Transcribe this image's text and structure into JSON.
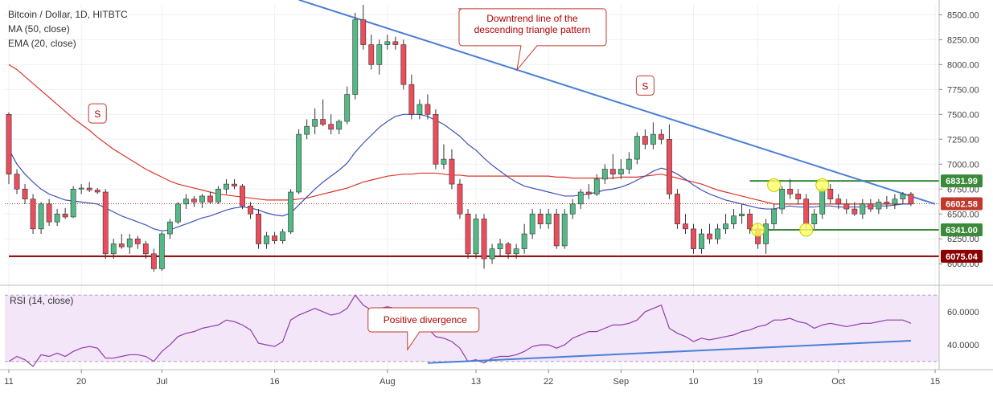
{
  "chart_data": {
    "type": "candlestick",
    "title": "Bitcoin / Dollar, 1D, HITBTC",
    "indicators": [
      "MA (50, close)",
      "EMA (20, close)"
    ],
    "rsi_label": "RSI (14, close)",
    "price_ticks": [
      "8500.00",
      "8250.00",
      "8000.00",
      "7750.00",
      "7500.00",
      "7250.00",
      "7000.00",
      "6750.00",
      "6500.00",
      "6250.00",
      "6000.00"
    ],
    "price_tick_values": [
      8500,
      8250,
      8000,
      7750,
      7500,
      7250,
      7000,
      6750,
      6500,
      6250,
      6000
    ],
    "rsi_ticks": [
      "60.0000",
      "40.0000"
    ],
    "rsi_tick_values": [
      60,
      40
    ],
    "x_ticks": [
      "11",
      "20",
      "Jul",
      "16",
      "Aug",
      "13",
      "22",
      "Sep",
      "10",
      "19",
      "Oct",
      "15"
    ],
    "x_tick_index": [
      0,
      9,
      19,
      33,
      47,
      58,
      67,
      76,
      85,
      93,
      103,
      115
    ],
    "price_range": [
      5800,
      8600
    ],
    "rsi_range": [
      25,
      75
    ],
    "rsi_bands": [
      70,
      30
    ],
    "price_tags": [
      {
        "label": "6831.99",
        "value": 6831.99,
        "color": "#3a8a3a"
      },
      {
        "label": "6602.58",
        "value": 6602.58,
        "color": "#c0392b"
      },
      {
        "label": "6341.00",
        "value": 6341.0,
        "color": "#3a8a3a"
      },
      {
        "label": "6075.04",
        "value": 6075.04,
        "color": "#8b0000"
      }
    ],
    "horizontal_lines": [
      {
        "value": 6831.99,
        "color": "#3a8a3a",
        "from_index": 92
      },
      {
        "value": 6341.0,
        "color": "#3a8a3a",
        "from_index": 92
      },
      {
        "value": 6075.04,
        "color": "#8b0000",
        "from_index": 0
      }
    ],
    "trendline": {
      "from": [
        36,
        8650
      ],
      "to": [
        115,
        6600
      ],
      "color": "#4a7fd6"
    },
    "rsi_trendline": {
      "from": [
        52,
        29
      ],
      "to": [
        112,
        42.5
      ],
      "color": "#4a7fd6"
    },
    "candles": [
      [
        7500,
        7520,
        6800,
        6900
      ],
      [
        6900,
        6950,
        6700,
        6750
      ],
      [
        6750,
        6800,
        6600,
        6650
      ],
      [
        6650,
        6700,
        6300,
        6350
      ],
      [
        6350,
        6620,
        6300,
        6600
      ],
      [
        6600,
        6650,
        6380,
        6420
      ],
      [
        6420,
        6550,
        6380,
        6500
      ],
      [
        6500,
        6560,
        6450,
        6470
      ],
      [
        6470,
        6780,
        6460,
        6750
      ],
      [
        6750,
        6800,
        6700,
        6760
      ],
      [
        6760,
        6820,
        6720,
        6740
      ],
      [
        6740,
        6760,
        6700,
        6720
      ],
      [
        6720,
        6750,
        6050,
        6100
      ],
      [
        6100,
        6250,
        6050,
        6200
      ],
      [
        6200,
        6300,
        6150,
        6170
      ],
      [
        6170,
        6300,
        6100,
        6250
      ],
      [
        6250,
        6280,
        6150,
        6200
      ],
      [
        6200,
        6230,
        6050,
        6100
      ],
      [
        6100,
        6150,
        5920,
        5950
      ],
      [
        5950,
        6320,
        5930,
        6300
      ],
      [
        6300,
        6450,
        6250,
        6420
      ],
      [
        6420,
        6620,
        6400,
        6600
      ],
      [
        6600,
        6700,
        6550,
        6650
      ],
      [
        6650,
        6680,
        6570,
        6620
      ],
      [
        6620,
        6700,
        6560,
        6680
      ],
      [
        6680,
        6720,
        6600,
        6620
      ],
      [
        6620,
        6780,
        6600,
        6750
      ],
      [
        6750,
        6850,
        6700,
        6800
      ],
      [
        6800,
        6850,
        6750,
        6780
      ],
      [
        6780,
        6800,
        6550,
        6580
      ],
      [
        6580,
        6620,
        6450,
        6500
      ],
      [
        6500,
        6550,
        6150,
        6200
      ],
      [
        6200,
        6320,
        6150,
        6280
      ],
      [
        6280,
        6320,
        6200,
        6230
      ],
      [
        6230,
        6350,
        6200,
        6320
      ],
      [
        6320,
        6750,
        6300,
        6720
      ],
      [
        6720,
        7350,
        6700,
        7300
      ],
      [
        7300,
        7450,
        7250,
        7380
      ],
      [
        7380,
        7560,
        7300,
        7450
      ],
      [
        7450,
        7650,
        7380,
        7400
      ],
      [
        7400,
        7500,
        7300,
        7350
      ],
      [
        7350,
        7450,
        7300,
        7430
      ],
      [
        7430,
        7780,
        7400,
        7700
      ],
      [
        7700,
        8520,
        7650,
        8450
      ],
      [
        8450,
        8600,
        8150,
        8200
      ],
      [
        8200,
        8300,
        7950,
        8000
      ],
      [
        8000,
        8250,
        7900,
        8200
      ],
      [
        8200,
        8300,
        8150,
        8230
      ],
      [
        8230,
        8280,
        8150,
        8200
      ],
      [
        8200,
        8250,
        7750,
        7800
      ],
      [
        7800,
        7900,
        7450,
        7500
      ],
      [
        7500,
        7650,
        7450,
        7600
      ],
      [
        7600,
        7700,
        7450,
        7500
      ],
      [
        7500,
        7550,
        6950,
        7000
      ],
      [
        7000,
        7200,
        6950,
        7050
      ],
      [
        7050,
        7150,
        6750,
        6800
      ],
      [
        6800,
        6850,
        6450,
        6500
      ],
      [
        6500,
        6550,
        6050,
        6100
      ],
      [
        6100,
        6500,
        6050,
        6450
      ],
      [
        6450,
        6500,
        5950,
        6050
      ],
      [
        6050,
        6200,
        6000,
        6150
      ],
      [
        6150,
        6250,
        6080,
        6200
      ],
      [
        6200,
        6220,
        6050,
        6100
      ],
      [
        6100,
        6200,
        6050,
        6150
      ],
      [
        6150,
        6400,
        6100,
        6300
      ],
      [
        6300,
        6550,
        6250,
        6500
      ],
      [
        6500,
        6550,
        6350,
        6400
      ],
      [
        6400,
        6550,
        6350,
        6500
      ],
      [
        6500,
        6550,
        6150,
        6180
      ],
      [
        6180,
        6550,
        6150,
        6500
      ],
      [
        6500,
        6650,
        6450,
        6600
      ],
      [
        6600,
        6750,
        6550,
        6720
      ],
      [
        6720,
        6800,
        6650,
        6700
      ],
      [
        6700,
        6900,
        6680,
        6850
      ],
      [
        6850,
        7000,
        6800,
        6950
      ],
      [
        6950,
        7100,
        6850,
        6900
      ],
      [
        6900,
        7050,
        6850,
        6950
      ],
      [
        6950,
        7120,
        6900,
        7050
      ],
      [
        7050,
        7320,
        7000,
        7280
      ],
      [
        7280,
        7350,
        7150,
        7200
      ],
      [
        7200,
        7420,
        7150,
        7300
      ],
      [
        7300,
        7350,
        7200,
        7250
      ],
      [
        7250,
        7400,
        6650,
        6700
      ],
      [
        6700,
        6750,
        6350,
        6400
      ],
      [
        6400,
        6500,
        6300,
        6350
      ],
      [
        6350,
        6400,
        6100,
        6150
      ],
      [
        6150,
        6350,
        6100,
        6300
      ],
      [
        6300,
        6400,
        6200,
        6250
      ],
      [
        6250,
        6400,
        6200,
        6350
      ],
      [
        6350,
        6500,
        6300,
        6400
      ],
      [
        6400,
        6550,
        6350,
        6480
      ],
      [
        6480,
        6600,
        6400,
        6500
      ],
      [
        6500,
        6550,
        6300,
        6350
      ],
      [
        6350,
        6400,
        6150,
        6200
      ],
      [
        6200,
        6450,
        6100,
        6400
      ],
      [
        6400,
        6600,
        6350,
        6550
      ],
      [
        6550,
        6780,
        6500,
        6750
      ],
      [
        6750,
        6850,
        6650,
        6700
      ],
      [
        6700,
        6750,
        6600,
        6650
      ],
      [
        6650,
        6700,
        6350,
        6400
      ],
      [
        6400,
        6550,
        6350,
        6500
      ],
      [
        6500,
        6780,
        6450,
        6750
      ],
      [
        6750,
        6800,
        6600,
        6650
      ],
      [
        6650,
        6700,
        6550,
        6600
      ],
      [
        6600,
        6650,
        6500,
        6550
      ],
      [
        6550,
        6620,
        6480,
        6500
      ],
      [
        6500,
        6650,
        6450,
        6600
      ],
      [
        6600,
        6650,
        6520,
        6550
      ],
      [
        6550,
        6650,
        6500,
        6620
      ],
      [
        6620,
        6680,
        6550,
        6600
      ],
      [
        6600,
        6700,
        6550,
        6650
      ],
      [
        6650,
        6720,
        6600,
        6700
      ],
      [
        6700,
        6720,
        6580,
        6600
      ]
    ],
    "ema20": [
      7150,
      7000,
      6900,
      6820,
      6750,
      6700,
      6670,
      6640,
      6630,
      6620,
      6610,
      6600,
      6560,
      6520,
      6480,
      6450,
      6420,
      6390,
      6350,
      6330,
      6340,
      6370,
      6400,
      6430,
      6460,
      6480,
      6510,
      6540,
      6560,
      6570,
      6560,
      6540,
      6510,
      6490,
      6480,
      6510,
      6590,
      6670,
      6750,
      6820,
      6880,
      6940,
      7010,
      7120,
      7210,
      7290,
      7370,
      7430,
      7480,
      7500,
      7500,
      7500,
      7480,
      7440,
      7400,
      7340,
      7280,
      7200,
      7140,
      7060,
      6990,
      6930,
      6870,
      6820,
      6780,
      6760,
      6740,
      6720,
      6700,
      6680,
      6680,
      6690,
      6700,
      6720,
      6740,
      6750,
      6770,
      6800,
      6840,
      6880,
      6930,
      6960,
      6940,
      6900,
      6850,
      6790,
      6740,
      6700,
      6670,
      6640,
      6620,
      6600,
      6580,
      6560,
      6550,
      6550,
      6570,
      6580,
      6570,
      6570,
      6570,
      6580,
      6580,
      6570,
      6570,
      6570,
      6570,
      6580,
      6580,
      6580,
      6590,
      6600,
      6600
    ],
    "ma50": [
      8000,
      7950,
      7880,
      7810,
      7740,
      7670,
      7600,
      7530,
      7460,
      7400,
      7340,
      7270,
      7210,
      7150,
      7100,
      7050,
      7000,
      6950,
      6910,
      6870,
      6830,
      6800,
      6780,
      6760,
      6740,
      6720,
      6700,
      6690,
      6680,
      6670,
      6660,
      6650,
      6640,
      6640,
      6640,
      6640,
      6650,
      6660,
      6680,
      6700,
      6720,
      6740,
      6760,
      6790,
      6820,
      6840,
      6860,
      6880,
      6890,
      6900,
      6900,
      6910,
      6910,
      6910,
      6900,
      6890,
      6890,
      6880,
      6880,
      6880,
      6880,
      6880,
      6880,
      6880,
      6880,
      6880,
      6880,
      6880,
      6870,
      6870,
      6860,
      6860,
      6860,
      6860,
      6860,
      6860,
      6870,
      6870,
      6870,
      6880,
      6890,
      6900,
      6880,
      6860,
      6840,
      6820,
      6800,
      6770,
      6740,
      6720,
      6700,
      6680,
      6660,
      6640,
      6620,
      6600,
      6600,
      6600,
      6600,
      6600,
      6600,
      6600,
      6600,
      6600,
      6600,
      6600,
      6600,
      6600,
      6600,
      6600,
      6600,
      6600,
      6600
    ],
    "rsi": [
      30,
      33,
      31,
      27,
      34,
      33,
      35,
      33,
      36,
      38,
      39,
      38,
      32,
      32,
      33,
      34,
      34,
      33,
      30,
      36,
      40,
      45,
      47,
      48,
      50,
      51,
      52,
      55,
      54,
      52,
      49,
      41,
      40,
      39,
      42,
      55,
      58,
      60,
      62,
      60,
      58,
      59,
      62,
      70,
      64,
      61,
      62,
      63,
      62,
      56,
      52,
      51,
      50,
      45,
      44,
      42,
      38,
      30,
      31,
      29,
      32,
      33,
      33,
      34,
      36,
      39,
      40,
      40,
      38,
      40,
      44,
      46,
      48,
      48,
      50,
      52,
      52,
      53,
      55,
      60,
      62,
      64,
      50,
      47,
      45,
      42,
      44,
      43,
      44,
      45,
      46,
      48,
      49,
      51,
      52,
      55,
      55,
      56,
      54,
      53,
      50,
      52,
      53,
      52,
      51,
      52,
      53,
      53,
      54,
      55,
      55,
      55,
      53
    ],
    "annotations": [
      "Downtrend line of the\ndescending triangle pattern",
      "Positive divergence"
    ],
    "markers": [
      "S",
      "S"
    ]
  }
}
